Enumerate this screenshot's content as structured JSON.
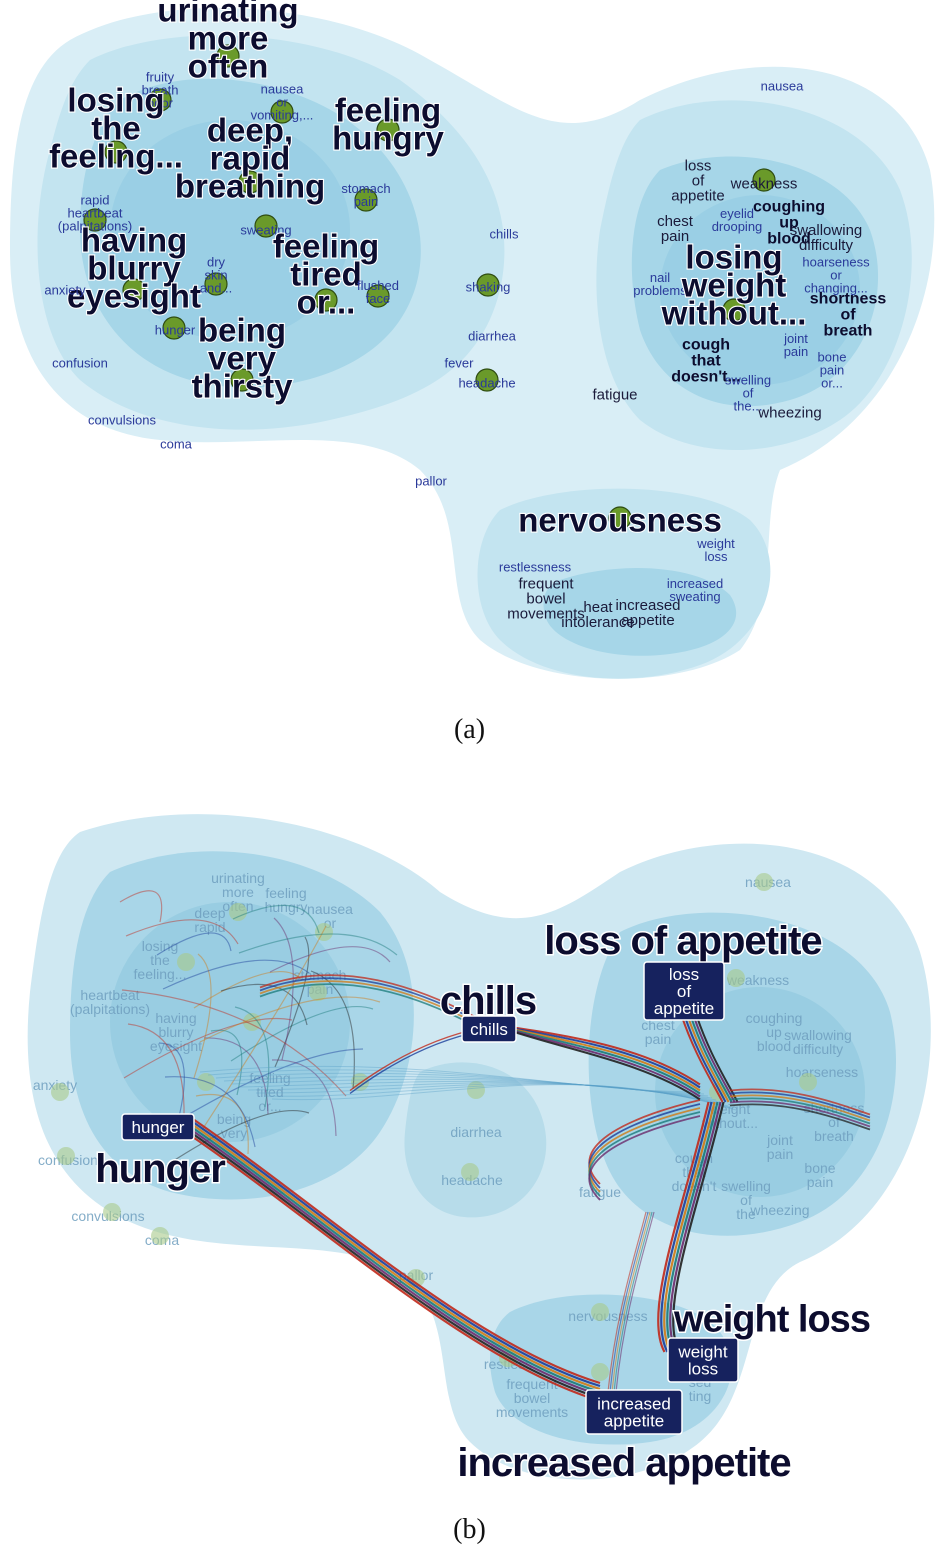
{
  "colors": {
    "bubble_outer": "#d9eef6",
    "bubble_mid": "#b5dded",
    "bubble_inner": "#8fcbe1",
    "node": "#6a9a2a",
    "node_stroke": "#2f4d12",
    "small_label": "#2a3a9a",
    "dark_label": "#0c0c2e",
    "highlight_box": "#16225e",
    "edge_red": "#c0281a",
    "edge_blue": "#1a3d9a",
    "edge_orange": "#d07a14",
    "edge_teal": "#1a7a7a"
  },
  "panel_a": {
    "caption": "(a)",
    "labels": [
      {
        "id": "urinating",
        "text": "urinating\nmore\noften",
        "size": "xl"
      },
      {
        "id": "fruity",
        "text": "fruity\nbreath\nodor",
        "size": "s"
      },
      {
        "id": "nausea1",
        "text": "nausea\nor\nvomiting,...",
        "size": "s"
      },
      {
        "id": "losing",
        "text": "losing\nthe\nfeeling...",
        "size": "xl"
      },
      {
        "id": "feeling_hungry",
        "text": "feeling\nhungry",
        "size": "xl"
      },
      {
        "id": "deep",
        "text": "deep,\nrapid\nbreathing",
        "size": "xl"
      },
      {
        "id": "stomach",
        "text": "stomach\npain",
        "size": "s"
      },
      {
        "id": "rapid_hb",
        "text": "rapid\nheartbeat\n(palpitations)",
        "size": "s"
      },
      {
        "id": "sweating",
        "text": "sweating",
        "size": "s"
      },
      {
        "id": "chills",
        "text": "chills",
        "size": "s"
      },
      {
        "id": "having",
        "text": "having\nblurry\neyesight",
        "size": "xl"
      },
      {
        "id": "dry",
        "text": "dry\nskin\nand...",
        "size": "s"
      },
      {
        "id": "feeling_tired",
        "text": "feeling\ntired\nor...",
        "size": "xl"
      },
      {
        "id": "flushed",
        "text": "flushed\nface",
        "size": "s"
      },
      {
        "id": "shaking",
        "text": "shaking",
        "size": "s"
      },
      {
        "id": "anxiety",
        "text": "anxiety",
        "size": "s"
      },
      {
        "id": "hunger",
        "text": "hunger",
        "size": "s"
      },
      {
        "id": "diarrhea",
        "text": "diarrhea",
        "size": "s"
      },
      {
        "id": "confusion",
        "text": "confusion",
        "size": "s"
      },
      {
        "id": "being",
        "text": "being\nvery\nthirsty",
        "size": "xl"
      },
      {
        "id": "fever",
        "text": "fever",
        "size": "s"
      },
      {
        "id": "headache",
        "text": "headache",
        "size": "s"
      },
      {
        "id": "convulsions",
        "text": "convulsions",
        "size": "s"
      },
      {
        "id": "coma",
        "text": "coma",
        "size": "s"
      },
      {
        "id": "pallor",
        "text": "pallor",
        "size": "s"
      },
      {
        "id": "nausea2",
        "text": "nausea",
        "size": "s"
      },
      {
        "id": "loss_app",
        "text": "loss\nof\nappetite",
        "size": "m"
      },
      {
        "id": "weakness",
        "text": "weakness",
        "size": "m"
      },
      {
        "id": "chest",
        "text": "chest\npain",
        "size": "m"
      },
      {
        "id": "eyelid",
        "text": "eyelid\ndrooping",
        "size": "s"
      },
      {
        "id": "coughing",
        "text": "coughing\nup\nblood",
        "size": "mb"
      },
      {
        "id": "swallowing",
        "text": "swallowing\ndifficulty",
        "size": "m"
      },
      {
        "id": "hoarse",
        "text": "hoarseness\nor\nchanging...",
        "size": "s"
      },
      {
        "id": "nail",
        "text": "nail\nproblems",
        "size": "s"
      },
      {
        "id": "losing_w",
        "text": "losing\nweight\nwithout...",
        "size": "xl"
      },
      {
        "id": "shortness",
        "text": "shortness\nof\nbreath",
        "size": "mb"
      },
      {
        "id": "joint",
        "text": "joint\npain",
        "size": "s"
      },
      {
        "id": "cough",
        "text": "cough\nthat\ndoesn't...",
        "size": "mb"
      },
      {
        "id": "bone",
        "text": "bone\npain\nor...",
        "size": "s"
      },
      {
        "id": "fatigue",
        "text": "fatigue",
        "size": "m"
      },
      {
        "id": "swelling",
        "text": "swelling\nof\nthe...",
        "size": "s"
      },
      {
        "id": "wheezing",
        "text": "wheezing",
        "size": "m"
      },
      {
        "id": "nervousness",
        "text": "nervousness",
        "size": "xl"
      },
      {
        "id": "weight_loss",
        "text": "weight\nloss",
        "size": "s"
      },
      {
        "id": "restless",
        "text": "restlessness",
        "size": "s"
      },
      {
        "id": "increased_sw",
        "text": "increased\nsweating",
        "size": "s"
      },
      {
        "id": "frequent",
        "text": "frequent\nbowel\nmovements",
        "size": "m"
      },
      {
        "id": "heat",
        "text": "heat\nintolerance",
        "size": "m"
      },
      {
        "id": "increased_app",
        "text": "increased\nappetite",
        "size": "m"
      }
    ]
  },
  "panel_b": {
    "caption": "(b)",
    "faded_labels": [
      {
        "id": "urinating",
        "text": "urinating\nmore\noften"
      },
      {
        "id": "feeling_hungry",
        "text": "feeling\nhungry"
      },
      {
        "id": "nausea_b",
        "text": "nausea\nor"
      },
      {
        "id": "deep",
        "text": "deep\nrapid"
      },
      {
        "id": "losing",
        "text": "losing\nthe\nfeeling..."
      },
      {
        "id": "stomach",
        "text": "stomach\npain"
      },
      {
        "id": "heartbeat",
        "text": "heartbeat\n(palpitations)"
      },
      {
        "id": "having",
        "text": "having\nblurry\neyesight"
      },
      {
        "id": "feeling_tired",
        "text": "feeling\ntired\nor..."
      },
      {
        "id": "being",
        "text": "being\nvery"
      },
      {
        "id": "anxiety",
        "text": "anxiety"
      },
      {
        "id": "confusion",
        "text": "confusion"
      },
      {
        "id": "convulsions",
        "text": "convulsions"
      },
      {
        "id": "coma",
        "text": "coma"
      },
      {
        "id": "diarrhea",
        "text": "diarrhea"
      },
      {
        "id": "headache",
        "text": "headache"
      },
      {
        "id": "fatigue",
        "text": "fatigue"
      },
      {
        "id": "pallor",
        "text": "pallor"
      },
      {
        "id": "nausea2",
        "text": "nausea"
      },
      {
        "id": "weakness",
        "text": "weakness"
      },
      {
        "id": "chest",
        "text": "chest\npain"
      },
      {
        "id": "coughing",
        "text": "coughing\nup\nblood"
      },
      {
        "id": "swallowing",
        "text": "swallowing\ndifficulty"
      },
      {
        "id": "hoarse",
        "text": "hoarseness"
      },
      {
        "id": "shortness",
        "text": "shortness\nof\nbreath"
      },
      {
        "id": "weight_w",
        "text": "weight\nwithout..."
      },
      {
        "id": "joint",
        "text": "joint\npain"
      },
      {
        "id": "cough",
        "text": "cough\nthat\ndoesn't"
      },
      {
        "id": "swelling",
        "text": "swelling\nof\nthe"
      },
      {
        "id": "wheezing",
        "text": "wheezing"
      },
      {
        "id": "bone",
        "text": "bone\npain"
      },
      {
        "id": "nervousness",
        "text": "nervousness"
      },
      {
        "id": "restless",
        "text": "restless"
      },
      {
        "id": "frequent",
        "text": "frequent\nbowel\nmovements"
      },
      {
        "id": "increased_sw",
        "text": "sed\nting"
      }
    ],
    "highlights": [
      {
        "id": "loss_of_appetite",
        "box": "loss\nof\nappetite",
        "big": "loss of appetite"
      },
      {
        "id": "chills",
        "box": "chills",
        "big": "chills"
      },
      {
        "id": "hunger",
        "box": "hunger",
        "big": "hunger"
      },
      {
        "id": "weight_loss",
        "box": "weight\nloss",
        "big": "weight loss"
      },
      {
        "id": "increased_appetite",
        "box": "increased\nappetite",
        "big": "increased appetite"
      }
    ]
  }
}
